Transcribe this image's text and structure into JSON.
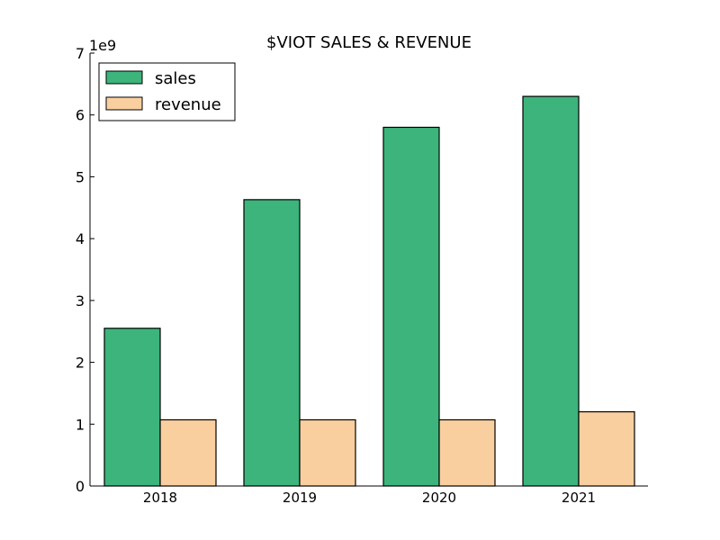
{
  "chart_data": {
    "type": "bar",
    "title": "$VIOT SALES & REVENUE",
    "xlabel": "",
    "ylabel": "",
    "y_offset_label": "1e9",
    "categories": [
      "2018",
      "2019",
      "2020",
      "2021"
    ],
    "series": [
      {
        "name": "sales",
        "color": "#3cb47b",
        "values": [
          2550000000.0,
          4630000000.0,
          5800000000.0,
          6300000000.0
        ]
      },
      {
        "name": "revenue",
        "color": "#f9cf9f",
        "values": [
          1070000000.0,
          1070000000.0,
          1070000000.0,
          1200000000.0
        ]
      }
    ],
    "ylim": [
      0,
      7000000000.0
    ],
    "yticks": [
      "0",
      "1",
      "2",
      "3",
      "4",
      "5",
      "6",
      "7"
    ],
    "grid": false,
    "legend_position": "top-left"
  }
}
